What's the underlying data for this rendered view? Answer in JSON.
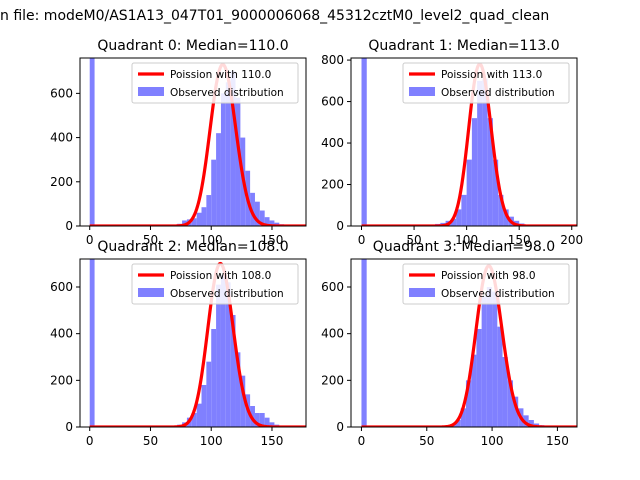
{
  "suptitle": "n file: modeM0/AS1A13_047T01_9000006068_45312cztM0_level2_quad_clean",
  "colors": {
    "curve": "#ff0000",
    "hist": "#8080ff",
    "axis": "#000000"
  },
  "chart_data": [
    {
      "type": "bar",
      "title": "Quadrant 0: Median=110.0",
      "legend": {
        "placement": "top-right",
        "entries": [
          "Poission with 110.0",
          "Observed distribution"
        ]
      },
      "xlim": [
        -8,
        178
      ],
      "ylim": [
        0,
        760
      ],
      "xticks": [
        0,
        50,
        100,
        150
      ],
      "yticks": [
        0,
        200,
        400,
        600
      ],
      "bin_width": 4,
      "bins": [
        [
          0,
          760
        ],
        [
          72,
          10
        ],
        [
          76,
          25
        ],
        [
          80,
          30
        ],
        [
          84,
          35
        ],
        [
          88,
          60
        ],
        [
          92,
          85
        ],
        [
          96,
          140
        ],
        [
          100,
          300
        ],
        [
          104,
          420
        ],
        [
          108,
          600
        ],
        [
          112,
          650
        ],
        [
          116,
          700
        ],
        [
          120,
          580
        ],
        [
          124,
          400
        ],
        [
          128,
          250
        ],
        [
          132,
          150
        ],
        [
          136,
          110
        ],
        [
          140,
          70
        ],
        [
          144,
          40
        ],
        [
          148,
          25
        ],
        [
          152,
          15
        ],
        [
          156,
          8
        ],
        [
          160,
          4
        ]
      ],
      "poisson_mean": 110.0,
      "poisson_scale": 730
    },
    {
      "type": "bar",
      "title": "Quadrant 1: Median=113.0",
      "legend": {
        "placement": "top-right",
        "entries": [
          "Poission with 113.0",
          "Observed distribution"
        ]
      },
      "xlim": [
        -10,
        205
      ],
      "ylim": [
        0,
        810
      ],
      "xticks": [
        0,
        50,
        100,
        150,
        200
      ],
      "yticks": [
        0,
        200,
        400,
        600,
        800
      ],
      "bin_width": 5,
      "bins": [
        [
          0,
          810
        ],
        [
          70,
          10
        ],
        [
          75,
          15
        ],
        [
          80,
          25
        ],
        [
          85,
          35
        ],
        [
          90,
          80
        ],
        [
          95,
          150
        ],
        [
          100,
          320
        ],
        [
          105,
          520
        ],
        [
          110,
          700
        ],
        [
          115,
          710
        ],
        [
          120,
          520
        ],
        [
          125,
          320
        ],
        [
          130,
          150
        ],
        [
          135,
          80
        ],
        [
          140,
          45
        ],
        [
          145,
          25
        ],
        [
          150,
          12
        ],
        [
          155,
          6
        ],
        [
          160,
          3
        ]
      ],
      "poisson_mean": 113.0,
      "poisson_scale": 780
    },
    {
      "type": "bar",
      "title": "Quadrant 2: Median=108.0",
      "legend": {
        "placement": "top-right",
        "entries": [
          "Poission with 108.0",
          "Observed distribution"
        ]
      },
      "xlim": [
        -8,
        178
      ],
      "ylim": [
        0,
        720
      ],
      "xticks": [
        0,
        50,
        100,
        150
      ],
      "yticks": [
        0,
        200,
        400,
        600
      ],
      "bin_width": 4,
      "bins": [
        [
          0,
          720
        ],
        [
          68,
          5
        ],
        [
          72,
          10
        ],
        [
          76,
          20
        ],
        [
          80,
          40
        ],
        [
          84,
          60
        ],
        [
          88,
          100
        ],
        [
          92,
          180
        ],
        [
          96,
          280
        ],
        [
          100,
          420
        ],
        [
          104,
          610
        ],
        [
          108,
          650
        ],
        [
          112,
          620
        ],
        [
          116,
          480
        ],
        [
          120,
          320
        ],
        [
          124,
          220
        ],
        [
          128,
          140
        ],
        [
          132,
          90
        ],
        [
          136,
          60
        ],
        [
          140,
          60
        ],
        [
          144,
          40
        ],
        [
          148,
          20
        ],
        [
          152,
          10
        ],
        [
          156,
          5
        ],
        [
          160,
          3
        ]
      ],
      "poisson_mean": 108.0,
      "poisson_scale": 700
    },
    {
      "type": "bar",
      "title": "Quadrant 3: Median=98.0",
      "legend": {
        "placement": "top-right",
        "entries": [
          "Poission with 98.0",
          "Observed distribution"
        ]
      },
      "xlim": [
        -8,
        165
      ],
      "ylim": [
        0,
        720
      ],
      "xticks": [
        0,
        50,
        100,
        150
      ],
      "yticks": [
        0,
        200,
        400,
        600
      ],
      "bin_width": 4,
      "bins": [
        [
          0,
          720
        ],
        [
          64,
          5
        ],
        [
          68,
          10
        ],
        [
          72,
          30
        ],
        [
          76,
          80
        ],
        [
          80,
          200
        ],
        [
          84,
          310
        ],
        [
          88,
          420
        ],
        [
          92,
          560
        ],
        [
          96,
          600
        ],
        [
          100,
          580
        ],
        [
          104,
          430
        ],
        [
          108,
          300
        ],
        [
          112,
          200
        ],
        [
          116,
          130
        ],
        [
          120,
          80
        ],
        [
          124,
          50
        ],
        [
          128,
          30
        ],
        [
          132,
          15
        ],
        [
          136,
          8
        ],
        [
          140,
          4
        ]
      ],
      "poisson_mean": 98.0,
      "poisson_scale": 690
    }
  ]
}
